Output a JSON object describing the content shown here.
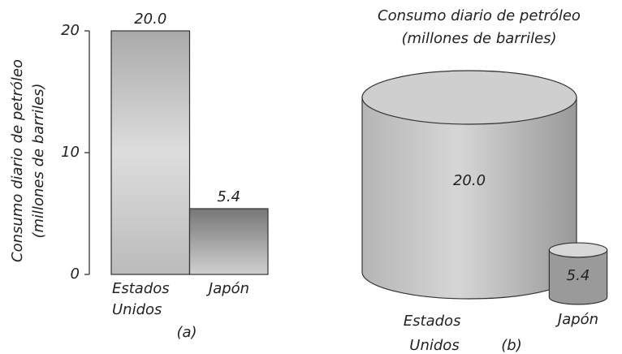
{
  "chart_data": [
    {
      "type": "bar",
      "y_label": [
        "Consumo diario de petróleo",
        "(millones de barriles)"
      ],
      "categories": [
        "Estados Unidos",
        "Japón"
      ],
      "values": [
        20.0,
        5.4
      ],
      "value_labels": [
        "20.0",
        "5.4"
      ],
      "ylim": [
        0,
        20
      ],
      "yticks": [
        0,
        10,
        20
      ],
      "colors": [
        "#c8c8c8",
        "#a8a8a8"
      ],
      "panel_label": "(a)"
    },
    {
      "type": "cylinder",
      "title": [
        "Consumo diario de petróleo",
        "(millones de barriles)"
      ],
      "categories": [
        "Estados Unidos",
        "Japón"
      ],
      "values": [
        20.0,
        5.4
      ],
      "value_labels": [
        "20.0",
        "5.4"
      ],
      "colors": [
        "#c4c4c4",
        "#a8a8a8"
      ],
      "panel_label": "(b)"
    }
  ]
}
